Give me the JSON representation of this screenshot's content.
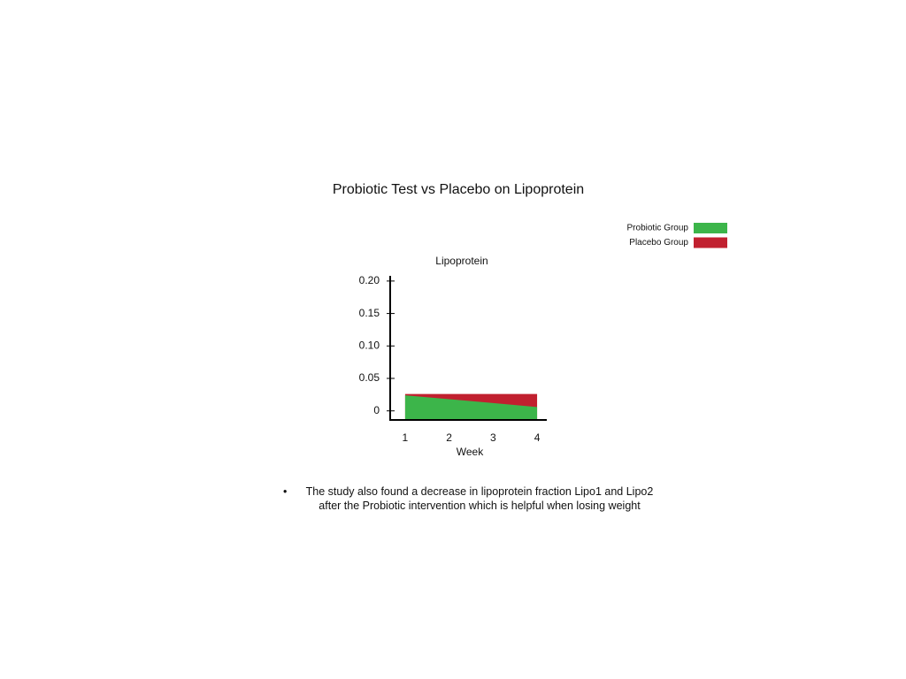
{
  "slide": {
    "title": "Probiotic Test vs Placebo on Lipoprotein",
    "bullets": [
      "The study also found a decrease in lipoprotein fraction Lipo1 and Lipo2 after the Probiotic intervention which is helpful when losing weight"
    ]
  },
  "chart_data": {
    "type": "area",
    "title": "Lipoprotein",
    "x_label": "Week",
    "x": [
      1,
      2,
      3,
      4
    ],
    "xlim": [
      0.66,
      4.22
    ],
    "xticks": [
      1,
      2,
      3,
      4
    ],
    "ylim": [
      -0.014,
      0.208
    ],
    "yticks": [
      0,
      0.05,
      {
        "value": 0.1,
        "label": "0.10"
      },
      0.15,
      {
        "value": 0.2,
        "label": "0.20"
      }
    ],
    "series": [
      {
        "name": "Probiotic Group",
        "color": "#3cb54a",
        "values": [
          0.024,
          0.018,
          0.012,
          0.006
        ]
      },
      {
        "name": "Placebo Group",
        "color": "#c1202f",
        "values": [
          0.026,
          0.026,
          0.026,
          0.026
        ]
      }
    ],
    "legend": "top-right"
  }
}
